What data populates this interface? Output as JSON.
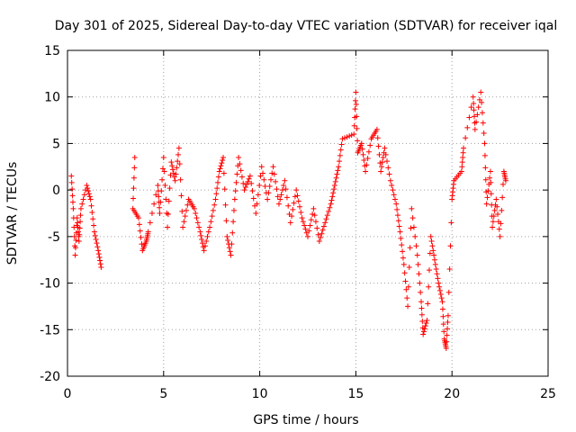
{
  "chart_data": {
    "type": "scatter",
    "title": "Day 301 of 2025, Sidereal Day-to-day VTEC variation (SDTVAR) for receiver iqal",
    "xlabel": "GPS time / hours",
    "ylabel": "SDTVAR / TECUs",
    "xlim": [
      0,
      25
    ],
    "ylim": [
      -20,
      15
    ],
    "xticks": [
      "0",
      "5",
      "10",
      "15",
      "20",
      "25"
    ],
    "yticks": [
      "15",
      "10",
      "5",
      "0",
      "-5",
      "-10",
      "-15",
      "-20"
    ],
    "grid": true,
    "marker": "+",
    "color": "#ff0000",
    "series": [
      {
        "name": "SDTVAR",
        "path": [
          [
            0.2,
            1.5
          ],
          [
            0.3,
            -2.0
          ],
          [
            0.4,
            -7.0
          ],
          [
            0.5,
            -3.0
          ],
          [
            0.6,
            -5.5
          ],
          [
            0.7,
            -2.0
          ],
          [
            1.0,
            0.5
          ],
          [
            1.2,
            -1.0
          ],
          [
            1.4,
            -4.5
          ],
          [
            1.6,
            -6.5
          ],
          [
            1.75,
            -8.3
          ],
          [
            3.5,
            3.5
          ],
          [
            3.4,
            -2.0
          ],
          [
            3.7,
            -3.0
          ],
          [
            3.9,
            -6.5
          ],
          [
            4.1,
            -5.5
          ],
          [
            4.2,
            -4.5
          ],
          [
            4.7,
            0.5
          ],
          [
            4.8,
            -2.5
          ],
          [
            5.0,
            3.5
          ],
          [
            5.2,
            -4.0
          ],
          [
            5.4,
            3.0
          ],
          [
            5.6,
            1.0
          ],
          [
            5.8,
            4.5
          ],
          [
            6.0,
            -4.0
          ],
          [
            6.3,
            -1.0
          ],
          [
            6.6,
            -2.0
          ],
          [
            6.9,
            -4.5
          ],
          [
            7.1,
            -6.5
          ],
          [
            7.4,
            -4.0
          ],
          [
            7.7,
            -1.0
          ],
          [
            7.9,
            2.0
          ],
          [
            8.1,
            3.5
          ],
          [
            8.3,
            -5.0
          ],
          [
            8.5,
            -7.0
          ],
          [
            8.7,
            -1.0
          ],
          [
            8.9,
            3.5
          ],
          [
            9.2,
            0.0
          ],
          [
            9.5,
            1.5
          ],
          [
            9.8,
            -2.5
          ],
          [
            10.1,
            2.5
          ],
          [
            10.4,
            -1.0
          ],
          [
            10.7,
            2.5
          ],
          [
            11.0,
            -1.5
          ],
          [
            11.3,
            1.0
          ],
          [
            11.6,
            -3.5
          ],
          [
            11.9,
            0.0
          ],
          [
            12.2,
            -3.0
          ],
          [
            12.5,
            -5.0
          ],
          [
            12.8,
            -2.0
          ],
          [
            13.1,
            -5.5
          ],
          [
            13.4,
            -3.5
          ],
          [
            13.7,
            -1.5
          ],
          [
            13.9,
            0.5
          ],
          [
            14.1,
            2.5
          ],
          [
            14.3,
            5.5
          ],
          [
            14.9,
            6.0
          ],
          [
            15.0,
            10.5
          ],
          [
            15.1,
            4.0
          ],
          [
            15.3,
            5.0
          ],
          [
            15.5,
            2.0
          ],
          [
            15.8,
            5.5
          ],
          [
            16.1,
            6.5
          ],
          [
            16.3,
            2.0
          ],
          [
            16.5,
            4.5
          ],
          [
            16.8,
            1.0
          ],
          [
            17.1,
            -1.5
          ],
          [
            17.3,
            -4.5
          ],
          [
            17.5,
            -8.0
          ],
          [
            17.7,
            -12.5
          ],
          [
            17.9,
            -2.0
          ],
          [
            18.2,
            -7.0
          ],
          [
            18.4,
            -12.0
          ],
          [
            18.5,
            -15.5
          ],
          [
            18.7,
            -14.0
          ],
          [
            18.9,
            -5.0
          ],
          [
            19.1,
            -7.5
          ],
          [
            19.3,
            -10.0
          ],
          [
            19.5,
            -12.0
          ],
          [
            19.6,
            -16.0
          ],
          [
            19.7,
            -17.0
          ],
          [
            19.8,
            -13.5
          ],
          [
            20.0,
            -1.0
          ],
          [
            20.1,
            1.0
          ],
          [
            20.5,
            2.0
          ],
          [
            20.6,
            4.5
          ],
          [
            21.1,
            10.0
          ],
          [
            21.2,
            6.5
          ],
          [
            21.5,
            10.5
          ],
          [
            21.7,
            5.0
          ],
          [
            21.8,
            -1.5
          ],
          [
            22.0,
            2.0
          ],
          [
            22.1,
            -4.0
          ],
          [
            22.3,
            -1.0
          ],
          [
            22.5,
            -5.0
          ],
          [
            22.7,
            2.0
          ],
          [
            22.8,
            1.0
          ]
        ]
      }
    ]
  }
}
